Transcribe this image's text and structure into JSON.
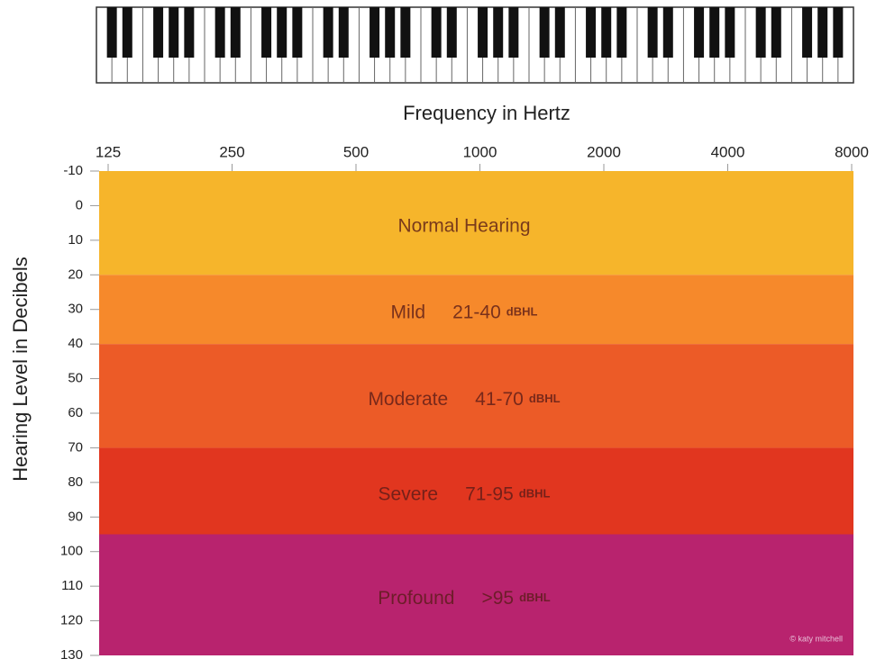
{
  "chart_data": {
    "type": "band",
    "x_label": "Frequency in Hertz",
    "y_label": "Hearing Level in Decibels",
    "x_scale": "log",
    "xlim": [
      125,
      8000
    ],
    "xticks": [
      125,
      250,
      500,
      1000,
      2000,
      4000,
      8000
    ],
    "ylim": [
      -10,
      130
    ],
    "yticks": [
      -10,
      0,
      10,
      20,
      30,
      40,
      50,
      60,
      70,
      80,
      90,
      100,
      110,
      120,
      130
    ],
    "y_inverted": true,
    "bands": [
      {
        "name": "Normal Hearing",
        "from": -10,
        "to": 20,
        "color": "#f6b52b"
      },
      {
        "name": "Mild",
        "range_label": "21-40",
        "unit": "dBHL",
        "from": 20,
        "to": 40,
        "color": "#f6892b"
      },
      {
        "name": "Moderate",
        "range_label": "41-70",
        "unit": "dBHL",
        "from": 40,
        "to": 70,
        "color": "#ec5b27"
      },
      {
        "name": "Severe",
        "range_label": "71-95",
        "unit": "dBHL",
        "from": 70,
        "to": 95,
        "color": "#e1361f"
      },
      {
        "name": "Profound",
        "range_label": ">95",
        "unit": "dBHL",
        "from": 95,
        "to": 130,
        "color": "#b8236e"
      }
    ],
    "annotation": "© katy mitchell"
  }
}
